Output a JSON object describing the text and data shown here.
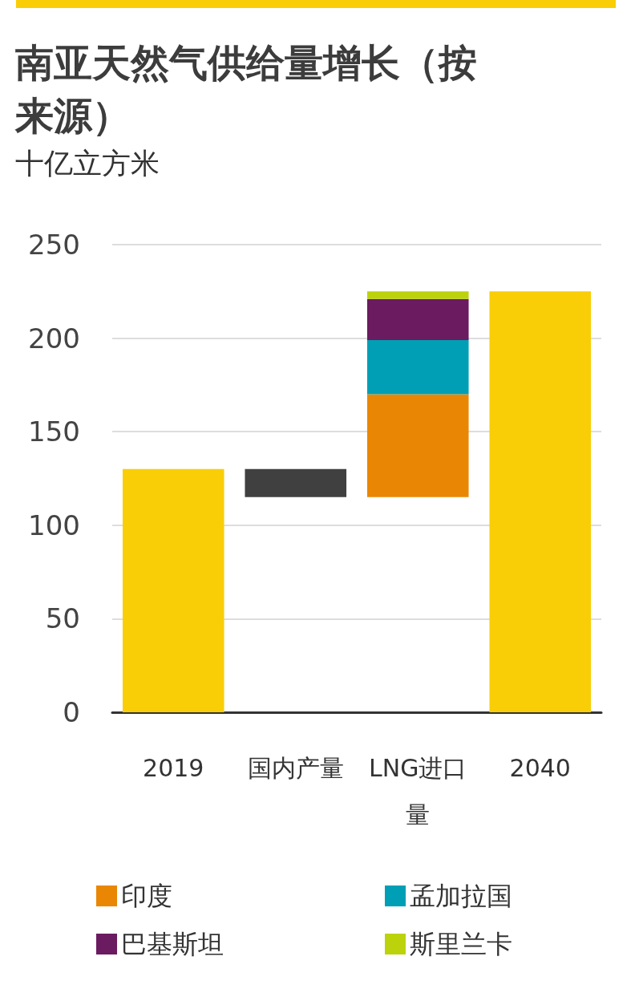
{
  "chart_data": {
    "type": "bar",
    "title": "南亚天然气供给量增长（按来源）",
    "subtitle": "十亿立方米",
    "categories": [
      "2019",
      "国内产量",
      "LNG进口量",
      "2040"
    ],
    "series": [
      {
        "color": "#f9ce07",
        "values": [
          130,
          null,
          null,
          225
        ]
      },
      {
        "color": "#404040",
        "values": [
          null,
          15,
          null,
          null
        ],
        "base": [
          null,
          115,
          null,
          null
        ]
      },
      {
        "name": "印度",
        "color": "#e98705",
        "values": [
          null,
          null,
          55,
          null
        ],
        "base": [
          null,
          null,
          115,
          null
        ]
      },
      {
        "name": "孟加拉国",
        "color": "#009fb5",
        "values": [
          null,
          null,
          29,
          null
        ],
        "base": [
          null,
          null,
          170,
          null
        ]
      },
      {
        "name": "巴基斯坦",
        "color": "#6b1b5f",
        "values": [
          null,
          null,
          22,
          null
        ],
        "base": [
          null,
          null,
          199,
          null
        ]
      },
      {
        "name": "斯里兰卡",
        "color": "#bcd30c",
        "values": [
          null,
          null,
          4,
          null
        ],
        "base": [
          null,
          null,
          221,
          null
        ]
      }
    ],
    "ylim": [
      0,
      250
    ],
    "yticks": [
      0,
      50,
      100,
      150,
      200,
      250
    ],
    "grid": "y",
    "legend": "bottom"
  }
}
